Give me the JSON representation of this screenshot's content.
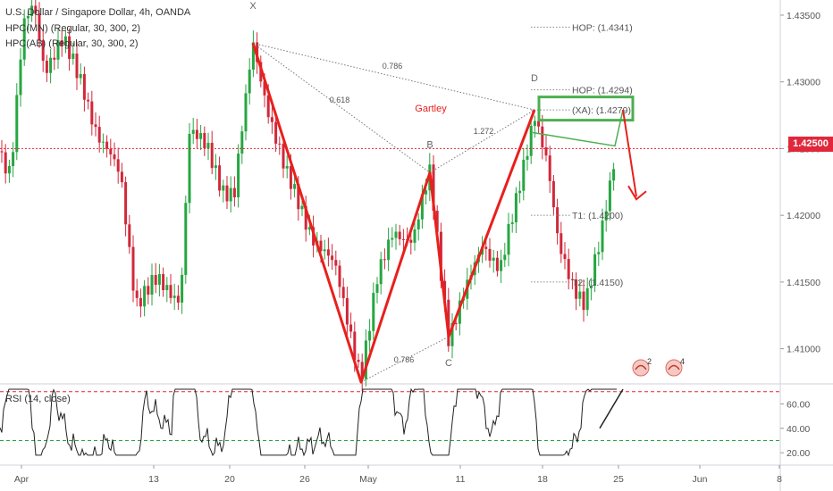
{
  "header": {
    "symbol_line": "U.S. Dollar / Singapore Dollar, 4h, OANDA",
    "indicator1": "HPC(MN) (Regular, 30, 300, 2)",
    "indicator2": "HPC(AB) (Regular, 30, 300, 2)"
  },
  "rsi_label": "RSI (14, close)",
  "last_price": "1.42500",
  "colors": {
    "up": "#26a641",
    "down": "#d1283a",
    "pattern": "#e8201c",
    "zone": "#4caf50",
    "projection": "#e8201c"
  },
  "chart_data": {
    "type": "candlestick",
    "title": "U.S. Dollar / Singapore Dollar, 4h, OANDA",
    "x_ticks": [
      "Apr",
      "13",
      "20",
      "26",
      "May",
      "11",
      "18",
      "25",
      "Jun",
      "8"
    ],
    "y_ticks": [
      "1.43500",
      "1.43000",
      "1.42500",
      "1.42000",
      "1.41500",
      "1.41000"
    ],
    "ylim": [
      1.4075,
      1.4356
    ],
    "last_price": 1.425,
    "harmonic_pattern": {
      "name": "Gartley",
      "points": [
        {
          "label": "X",
          "price": 1.4329
        },
        {
          "label": "A",
          "price": 1.4075
        },
        {
          "label": "B",
          "price": 1.4232
        },
        {
          "label": "C",
          "price": 1.4109
        },
        {
          "label": "D",
          "price": 1.4279
        }
      ],
      "ratios": [
        "0.786",
        "0.618",
        "1.272",
        "0.786"
      ],
      "levels": [
        "HOP: (1.4341)",
        "HOP: (1.4294)",
        "(XA): (1.4279)",
        "T1: (1.4200)",
        "T2: (1.4150)"
      ],
      "level_values": [
        1.4341,
        1.4294,
        1.4279,
        1.42,
        1.415
      ]
    },
    "rsi": {
      "label": "RSI (14, close)",
      "y_ticks": [
        "60.00",
        "40.00",
        "20.00"
      ],
      "overbought": 70,
      "oversold": 30
    }
  }
}
